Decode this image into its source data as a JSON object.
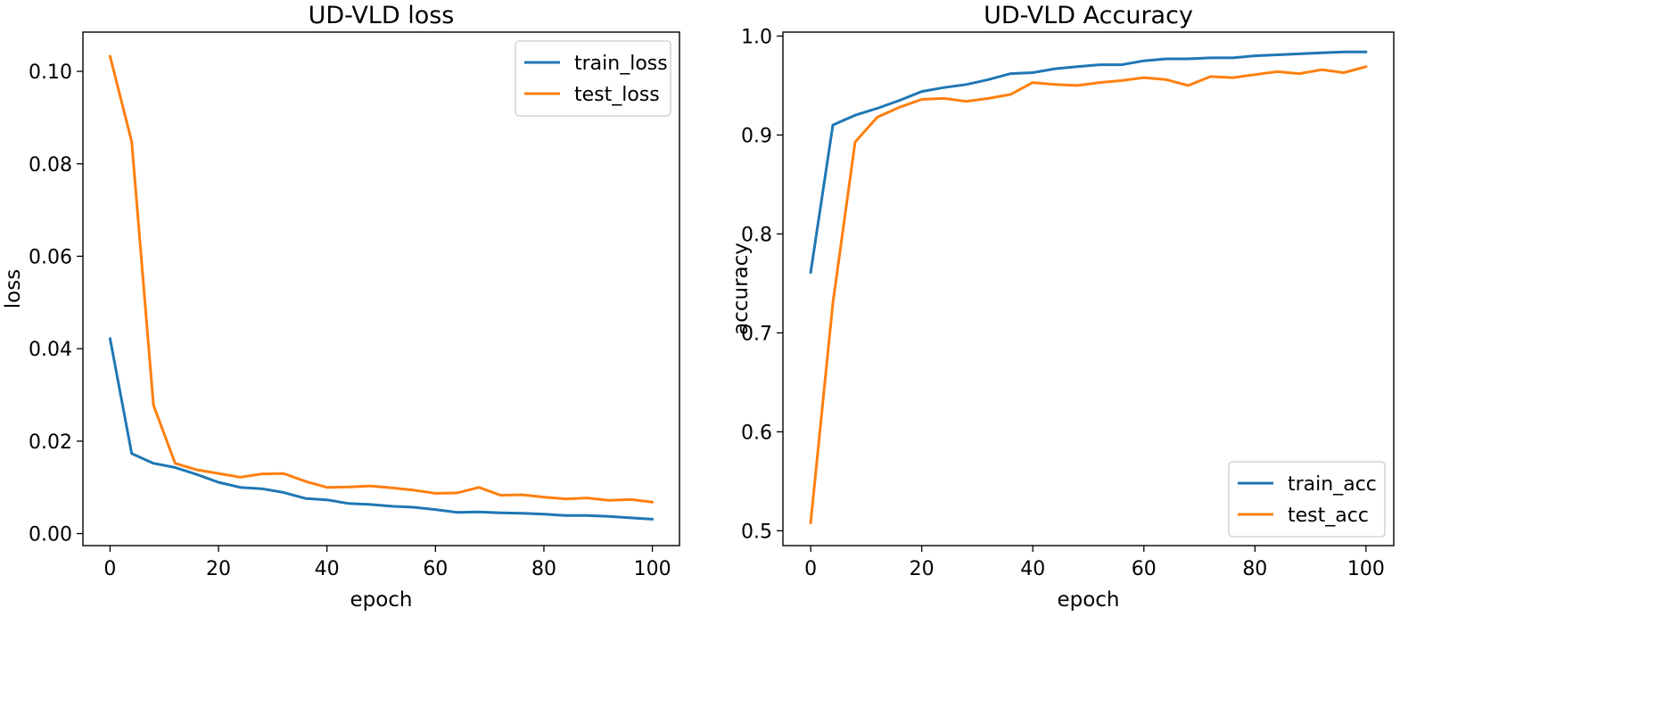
{
  "chart_data": [
    {
      "type": "line",
      "title": "UD-VLD loss",
      "xlabel": "epoch",
      "ylabel": "loss",
      "xlim": [
        -5,
        105
      ],
      "ylim": [
        -0.0026,
        0.1085
      ],
      "xticks": [
        0,
        20,
        40,
        60,
        80,
        100
      ],
      "xtick_labels": [
        "0",
        "20",
        "40",
        "60",
        "80",
        "100"
      ],
      "yticks": [
        0.0,
        0.02,
        0.04,
        0.06,
        0.08,
        0.1
      ],
      "ytick_labels": [
        "0.00",
        "0.02",
        "0.04",
        "0.06",
        "0.08",
        "0.10"
      ],
      "legend_position": "top-right",
      "x": [
        0,
        4,
        8,
        12,
        16,
        20,
        24,
        28,
        32,
        36,
        40,
        44,
        48,
        52,
        56,
        60,
        64,
        68,
        72,
        76,
        80,
        84,
        88,
        92,
        96,
        100
      ],
      "series": [
        {
          "name": "train_loss",
          "color": "#1f77b4",
          "values": [
            0.0422,
            0.0173,
            0.0152,
            0.0143,
            0.0128,
            0.0111,
            0.01,
            0.0097,
            0.0089,
            0.0076,
            0.0073,
            0.0065,
            0.0063,
            0.0059,
            0.0057,
            0.0052,
            0.0046,
            0.0047,
            0.0045,
            0.0044,
            0.0042,
            0.0039,
            0.0039,
            0.0037,
            0.0034,
            0.0031
          ]
        },
        {
          "name": "test_loss",
          "color": "#ff7f0e",
          "values": [
            0.1033,
            0.0848,
            0.0278,
            0.0152,
            0.0138,
            0.013,
            0.0122,
            0.0129,
            0.013,
            0.0113,
            0.01,
            0.0101,
            0.0103,
            0.0099,
            0.0094,
            0.0087,
            0.0088,
            0.01,
            0.0083,
            0.0084,
            0.0079,
            0.0075,
            0.0077,
            0.0072,
            0.0074,
            0.0068
          ]
        }
      ]
    },
    {
      "type": "line",
      "title": "UD-VLD Accuracy",
      "xlabel": "epoch",
      "ylabel": "accuracy",
      "xlim": [
        -5,
        105
      ],
      "ylim": [
        0.485,
        1.004
      ],
      "xticks": [
        0,
        20,
        40,
        60,
        80,
        100
      ],
      "xtick_labels": [
        "0",
        "20",
        "40",
        "60",
        "80",
        "100"
      ],
      "yticks": [
        0.5,
        0.6,
        0.7,
        0.8,
        0.9,
        1.0
      ],
      "ytick_labels": [
        "0.5",
        "0.6",
        "0.7",
        "0.8",
        "0.9",
        "1.0"
      ],
      "legend_position": "bottom-right",
      "x": [
        0,
        4,
        8,
        12,
        16,
        20,
        24,
        28,
        32,
        36,
        40,
        44,
        48,
        52,
        56,
        60,
        64,
        68,
        72,
        76,
        80,
        84,
        88,
        92,
        96,
        100
      ],
      "series": [
        {
          "name": "train_acc",
          "color": "#1f77b4",
          "values": [
            0.761,
            0.91,
            0.92,
            0.927,
            0.935,
            0.944,
            0.948,
            0.951,
            0.956,
            0.962,
            0.963,
            0.967,
            0.969,
            0.971,
            0.971,
            0.975,
            0.977,
            0.977,
            0.978,
            0.978,
            0.98,
            0.981,
            0.982,
            0.983,
            0.984,
            0.984
          ]
        },
        {
          "name": "test_acc",
          "color": "#ff7f0e",
          "values": [
            0.508,
            0.73,
            0.893,
            0.918,
            0.928,
            0.936,
            0.937,
            0.934,
            0.937,
            0.941,
            0.953,
            0.951,
            0.95,
            0.953,
            0.955,
            0.958,
            0.956,
            0.95,
            0.959,
            0.958,
            0.961,
            0.964,
            0.962,
            0.966,
            0.963,
            0.969
          ]
        }
      ]
    }
  ]
}
